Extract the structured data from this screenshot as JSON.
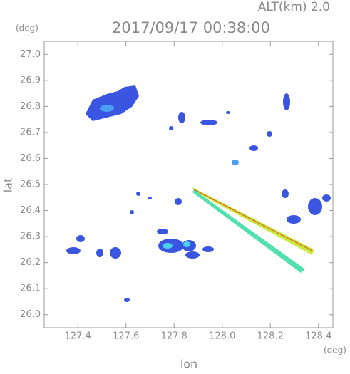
{
  "chart_data": {
    "type": "map",
    "title": "2017/09/17 00:38:00",
    "subtitle": "ALT(km) 2.0",
    "x_label": "lon",
    "y_label": "lat",
    "x_unit": "(deg)",
    "y_unit": "(deg)",
    "xlim": [
      127.26,
      128.46
    ],
    "ylim": [
      25.95,
      27.05
    ],
    "xticks": [
      127.4,
      127.6,
      127.8,
      {
        "value": 128.0,
        "label": "128.0"
      },
      128.2,
      128.4
    ],
    "yticks": [
      {
        "value": 26.0,
        "label": "26.0"
      },
      26.1,
      26.2,
      26.3,
      26.4,
      26.5,
      26.6,
      26.7,
      26.8,
      26.9,
      {
        "value": 27.0,
        "label": "27.0"
      }
    ]
  }
}
